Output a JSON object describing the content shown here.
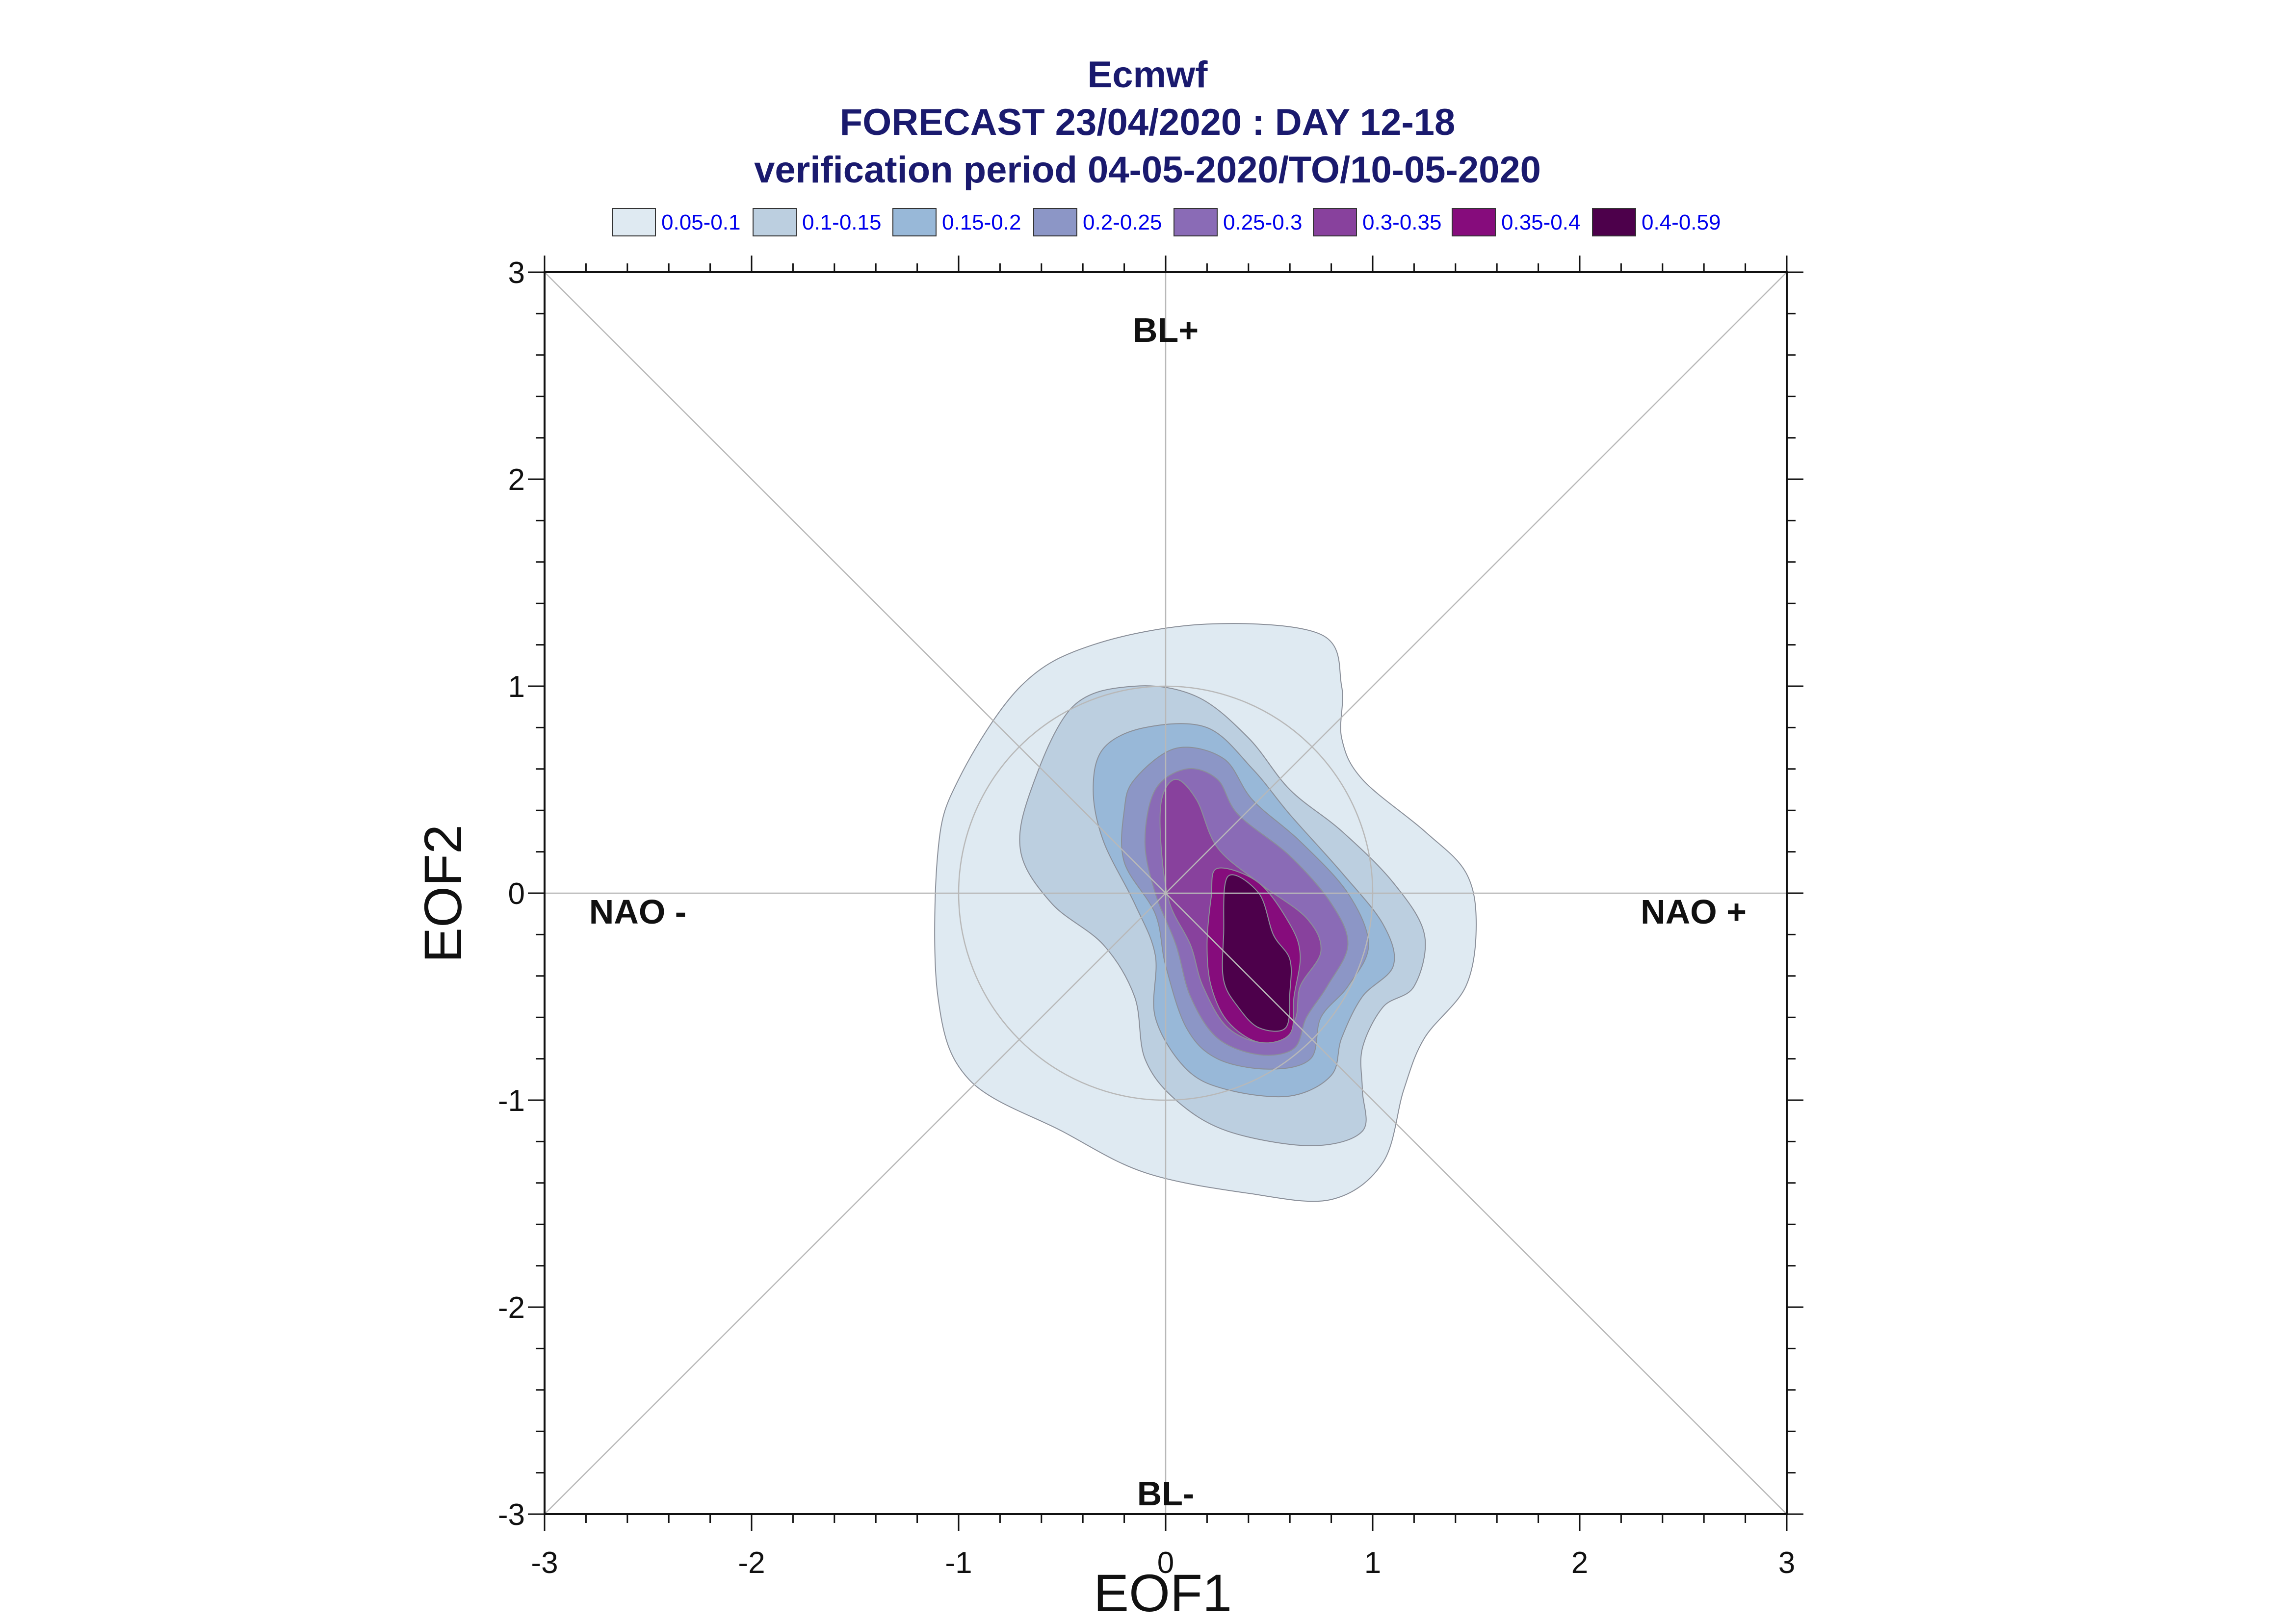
{
  "chart_data": {
    "type": "contour",
    "title": "Ecmwf",
    "subtitle_lines": [
      "FORECAST 23/04/2020 : DAY 12-18",
      "verification period 04-05-2020/TO/10-05-2020"
    ],
    "xlabel": "EOF1",
    "ylabel": "EOF2",
    "xlim": [
      -3,
      3
    ],
    "ylim": [
      -3,
      3
    ],
    "x_ticks": [
      "-3",
      "-2",
      "-1",
      "0",
      "1",
      "2",
      "3"
    ],
    "y_ticks": [
      "3",
      "2",
      "1",
      "0",
      "-1",
      "-2",
      "-3"
    ],
    "regime_labels": [
      {
        "text": "BL+",
        "x": 0,
        "y": 2.72
      },
      {
        "text": "BL-",
        "x": 0,
        "y": -2.9
      },
      {
        "text": "NAO -",
        "x": -2.55,
        "y": -0.09
      },
      {
        "text": "NAO +",
        "x": 2.55,
        "y": -0.09
      }
    ],
    "legend": [
      {
        "label": "0.05-0.1",
        "color": "#dfeaf2"
      },
      {
        "label": "0.1-0.15",
        "color": "#bccfe0"
      },
      {
        "label": "0.15-0.2",
        "color": "#98b8d8"
      },
      {
        "label": "0.2-0.25",
        "color": "#8c96c6"
      },
      {
        "label": "0.25-0.3",
        "color": "#8a6bb6"
      },
      {
        "label": "0.3-0.35",
        "color": "#88419d"
      },
      {
        "label": "0.35-0.4",
        "color": "#860c7c"
      },
      {
        "label": "0.4-0.59",
        "color": "#4d004b"
      }
    ],
    "unit_circle_radius": 1,
    "density_contours": [
      {
        "level": "0.05-0.1",
        "points": [
          [
            -0.7,
            1.0
          ],
          [
            -0.35,
            1.2
          ],
          [
            0.2,
            1.3
          ],
          [
            0.75,
            1.25
          ],
          [
            0.85,
            1.0
          ],
          [
            0.85,
            0.75
          ],
          [
            0.95,
            0.55
          ],
          [
            1.25,
            0.3
          ],
          [
            1.45,
            0.1
          ],
          [
            1.5,
            -0.15
          ],
          [
            1.45,
            -0.45
          ],
          [
            1.25,
            -0.7
          ],
          [
            1.15,
            -0.95
          ],
          [
            1.05,
            -1.3
          ],
          [
            0.8,
            -1.48
          ],
          [
            0.4,
            -1.45
          ],
          [
            -0.1,
            -1.35
          ],
          [
            -0.5,
            -1.15
          ],
          [
            -0.95,
            -0.9
          ],
          [
            -1.1,
            -0.5
          ],
          [
            -1.1,
            0.2
          ],
          [
            -1.0,
            0.55
          ]
        ]
      },
      {
        "level": "0.1-0.15",
        "points": [
          [
            -0.45,
            0.9
          ],
          [
            -0.15,
            1.0
          ],
          [
            0.15,
            0.95
          ],
          [
            0.4,
            0.75
          ],
          [
            0.6,
            0.5
          ],
          [
            0.85,
            0.3
          ],
          [
            1.1,
            0.05
          ],
          [
            1.25,
            -0.2
          ],
          [
            1.2,
            -0.45
          ],
          [
            1.05,
            -0.55
          ],
          [
            0.95,
            -0.75
          ],
          [
            0.95,
            -0.95
          ],
          [
            0.95,
            -1.15
          ],
          [
            0.7,
            -1.22
          ],
          [
            0.3,
            -1.15
          ],
          [
            0.05,
            -1.0
          ],
          [
            -0.1,
            -0.8
          ],
          [
            -0.15,
            -0.5
          ],
          [
            -0.3,
            -0.25
          ],
          [
            -0.55,
            -0.05
          ],
          [
            -0.7,
            0.2
          ],
          [
            -0.65,
            0.5
          ]
        ]
      },
      {
        "level": "0.15-0.2",
        "points": [
          [
            -0.3,
            0.7
          ],
          [
            -0.1,
            0.8
          ],
          [
            0.2,
            0.8
          ],
          [
            0.42,
            0.6
          ],
          [
            0.6,
            0.38
          ],
          [
            0.85,
            0.1
          ],
          [
            1.05,
            -0.15
          ],
          [
            1.1,
            -0.35
          ],
          [
            0.95,
            -0.5
          ],
          [
            0.85,
            -0.7
          ],
          [
            0.8,
            -0.88
          ],
          [
            0.6,
            -0.98
          ],
          [
            0.3,
            -0.95
          ],
          [
            0.1,
            -0.85
          ],
          [
            -0.05,
            -0.6
          ],
          [
            -0.05,
            -0.3
          ],
          [
            -0.15,
            -0.05
          ],
          [
            -0.3,
            0.25
          ],
          [
            -0.35,
            0.5
          ]
        ]
      },
      {
        "level": "0.2-0.25",
        "points": [
          [
            -0.15,
            0.55
          ],
          [
            0.05,
            0.7
          ],
          [
            0.28,
            0.65
          ],
          [
            0.42,
            0.45
          ],
          [
            0.65,
            0.25
          ],
          [
            0.88,
            0.0
          ],
          [
            0.98,
            -0.25
          ],
          [
            0.88,
            -0.45
          ],
          [
            0.75,
            -0.6
          ],
          [
            0.7,
            -0.8
          ],
          [
            0.5,
            -0.85
          ],
          [
            0.25,
            -0.8
          ],
          [
            0.1,
            -0.65
          ],
          [
            0.0,
            -0.35
          ],
          [
            -0.05,
            -0.1
          ],
          [
            -0.2,
            0.15
          ],
          [
            -0.2,
            0.4
          ]
        ]
      },
      {
        "level": "0.25-0.3",
        "points": [
          [
            -0.05,
            0.5
          ],
          [
            0.1,
            0.6
          ],
          [
            0.25,
            0.55
          ],
          [
            0.35,
            0.38
          ],
          [
            0.6,
            0.18
          ],
          [
            0.8,
            -0.05
          ],
          [
            0.88,
            -0.25
          ],
          [
            0.78,
            -0.45
          ],
          [
            0.68,
            -0.6
          ],
          [
            0.62,
            -0.75
          ],
          [
            0.45,
            -0.78
          ],
          [
            0.25,
            -0.7
          ],
          [
            0.12,
            -0.5
          ],
          [
            0.05,
            -0.25
          ],
          [
            -0.05,
            0.0
          ],
          [
            -0.1,
            0.25
          ]
        ]
      },
      {
        "level": "0.3-0.35",
        "points": [
          [
            0.05,
            0.55
          ],
          [
            0.15,
            0.45
          ],
          [
            0.25,
            0.22
          ],
          [
            0.45,
            0.05
          ],
          [
            0.68,
            -0.12
          ],
          [
            0.75,
            -0.28
          ],
          [
            0.65,
            -0.45
          ],
          [
            0.62,
            -0.62
          ],
          [
            0.48,
            -0.72
          ],
          [
            0.3,
            -0.65
          ],
          [
            0.18,
            -0.45
          ],
          [
            0.12,
            -0.25
          ],
          [
            0.02,
            -0.05
          ],
          [
            -0.02,
            0.2
          ],
          [
            -0.02,
            0.45
          ]
        ]
      },
      {
        "level": "0.35-0.4",
        "points": [
          [
            0.25,
            0.12
          ],
          [
            0.45,
            0.05
          ],
          [
            0.6,
            -0.15
          ],
          [
            0.65,
            -0.3
          ],
          [
            0.62,
            -0.5
          ],
          [
            0.6,
            -0.68
          ],
          [
            0.45,
            -0.72
          ],
          [
            0.3,
            -0.62
          ],
          [
            0.22,
            -0.45
          ],
          [
            0.2,
            -0.25
          ],
          [
            0.22,
            -0.02
          ]
        ]
      },
      {
        "level": "0.4-0.59",
        "points": [
          [
            0.3,
            0.08
          ],
          [
            0.45,
            0.0
          ],
          [
            0.52,
            -0.2
          ],
          [
            0.6,
            -0.32
          ],
          [
            0.6,
            -0.48
          ],
          [
            0.58,
            -0.65
          ],
          [
            0.45,
            -0.65
          ],
          [
            0.35,
            -0.55
          ],
          [
            0.28,
            -0.42
          ],
          [
            0.28,
            -0.2
          ]
        ]
      }
    ]
  }
}
